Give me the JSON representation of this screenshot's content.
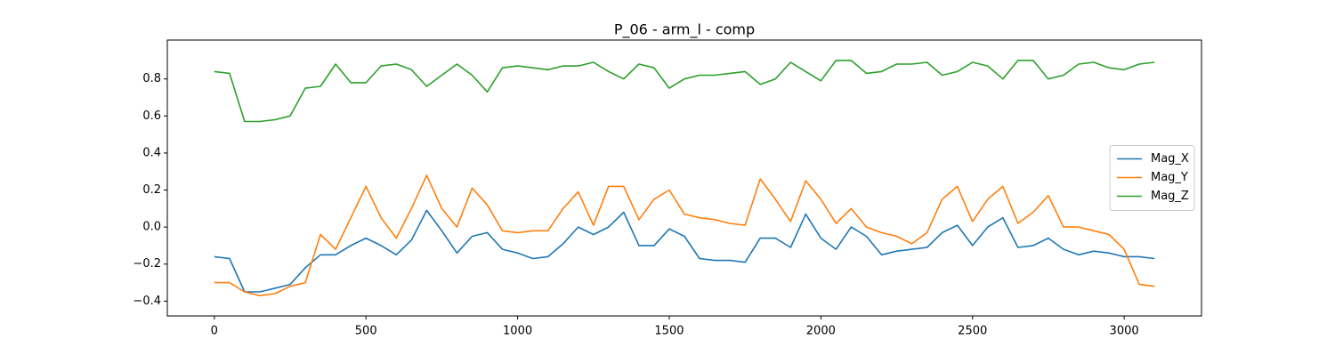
{
  "chart_data": {
    "type": "line",
    "title": "P_06 - arm_l - comp",
    "x": [
      0,
      50,
      100,
      150,
      200,
      250,
      300,
      350,
      400,
      450,
      500,
      550,
      600,
      650,
      700,
      750,
      800,
      850,
      900,
      950,
      1000,
      1050,
      1100,
      1150,
      1200,
      1250,
      1300,
      1350,
      1400,
      1450,
      1500,
      1550,
      1600,
      1650,
      1700,
      1750,
      1800,
      1850,
      1900,
      1950,
      2000,
      2050,
      2100,
      2150,
      2200,
      2250,
      2300,
      2350,
      2400,
      2450,
      2500,
      2550,
      2600,
      2650,
      2700,
      2750,
      2800,
      2850,
      2900,
      2950,
      3000,
      3050,
      3100
    ],
    "series": [
      {
        "name": "Mag_X",
        "color": "#1f77b4",
        "values": [
          -0.16,
          -0.17,
          -0.35,
          -0.35,
          -0.33,
          -0.31,
          -0.22,
          -0.15,
          -0.15,
          -0.1,
          -0.06,
          -0.1,
          -0.15,
          -0.07,
          0.09,
          -0.02,
          -0.14,
          -0.05,
          -0.03,
          -0.12,
          -0.14,
          -0.17,
          -0.16,
          -0.09,
          0.0,
          -0.04,
          0.0,
          0.08,
          -0.1,
          -0.1,
          -0.01,
          -0.05,
          -0.17,
          -0.18,
          -0.18,
          -0.19,
          -0.06,
          -0.06,
          -0.11,
          0.07,
          -0.06,
          -0.12,
          0.0,
          -0.05,
          -0.15,
          -0.13,
          -0.12,
          -0.11,
          -0.03,
          0.01,
          -0.1,
          0.0,
          0.05,
          -0.11,
          -0.1,
          -0.06,
          -0.12,
          -0.15,
          -0.13,
          -0.14,
          -0.16,
          -0.16,
          -0.17
        ]
      },
      {
        "name": "Mag_Y",
        "color": "#ff7f0e",
        "values": [
          -0.3,
          -0.3,
          -0.35,
          -0.37,
          -0.36,
          -0.32,
          -0.3,
          -0.04,
          -0.12,
          0.05,
          0.22,
          0.05,
          -0.06,
          0.1,
          0.28,
          0.1,
          0.0,
          0.21,
          0.12,
          -0.02,
          -0.03,
          -0.02,
          -0.02,
          0.1,
          0.19,
          0.01,
          0.22,
          0.22,
          0.04,
          0.15,
          0.2,
          0.07,
          0.05,
          0.04,
          0.02,
          0.01,
          0.26,
          0.15,
          0.03,
          0.25,
          0.15,
          0.02,
          0.1,
          0.0,
          -0.03,
          -0.05,
          -0.09,
          -0.03,
          0.15,
          0.22,
          0.03,
          0.15,
          0.22,
          0.02,
          0.08,
          0.17,
          0.0,
          0.0,
          -0.02,
          -0.04,
          -0.12,
          -0.31,
          -0.32
        ]
      },
      {
        "name": "Mag_Z",
        "color": "#2ca02c",
        "values": [
          0.84,
          0.83,
          0.57,
          0.57,
          0.58,
          0.6,
          0.75,
          0.76,
          0.88,
          0.78,
          0.78,
          0.87,
          0.88,
          0.85,
          0.76,
          0.82,
          0.88,
          0.82,
          0.73,
          0.86,
          0.87,
          0.86,
          0.85,
          0.87,
          0.87,
          0.89,
          0.84,
          0.8,
          0.88,
          0.86,
          0.75,
          0.8,
          0.82,
          0.82,
          0.83,
          0.84,
          0.77,
          0.8,
          0.89,
          0.84,
          0.79,
          0.9,
          0.9,
          0.83,
          0.84,
          0.88,
          0.88,
          0.89,
          0.82,
          0.84,
          0.89,
          0.87,
          0.8,
          0.9,
          0.9,
          0.8,
          0.82,
          0.88,
          0.89,
          0.86,
          0.85,
          0.88,
          0.89
        ]
      }
    ],
    "xlim": [
      -155,
      3255
    ],
    "xticks": [
      0,
      500,
      1000,
      1500,
      2000,
      2500,
      3000
    ],
    "ylim": [
      -0.48,
      1.01
    ],
    "yticks": [
      {
        "value": -0.4,
        "label": "−0.4"
      },
      {
        "value": -0.2,
        "label": "−0.2"
      },
      {
        "value": 0,
        "label": "0.0"
      },
      0.2,
      0.4,
      0.6,
      0.8
    ],
    "legend": "center right"
  }
}
